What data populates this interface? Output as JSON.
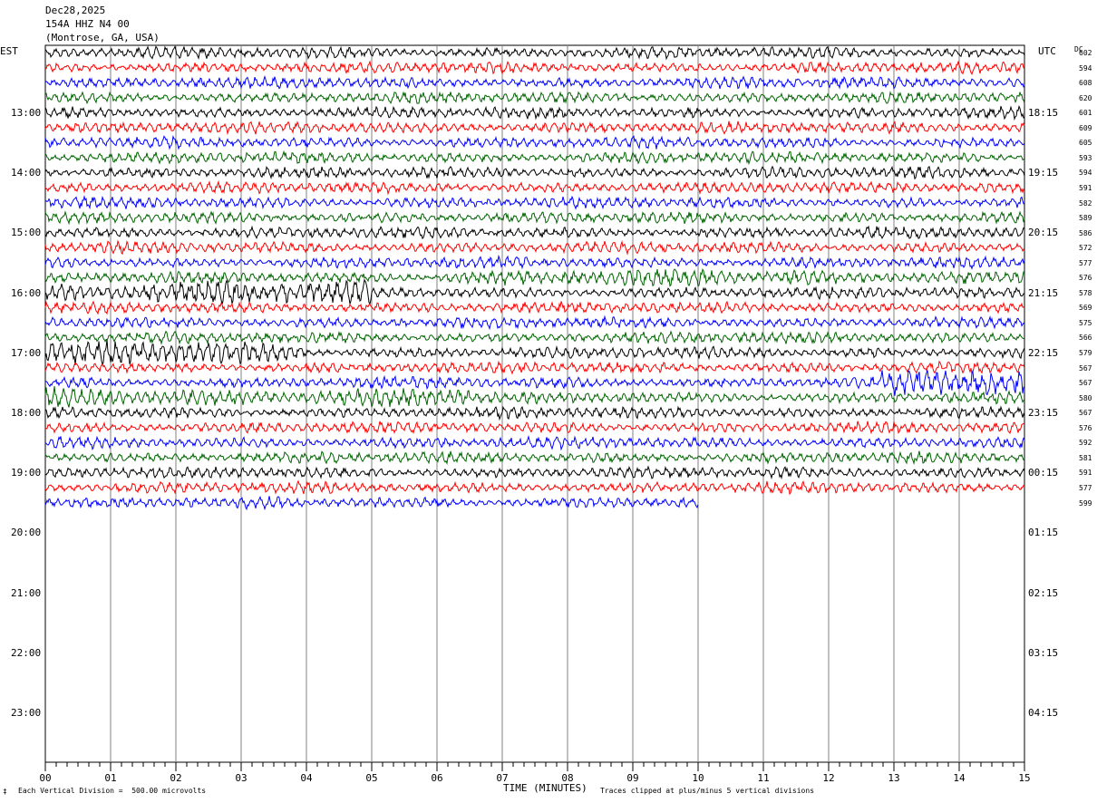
{
  "header": {
    "date": "Dec28,2025",
    "station": "154A HHZ N4 00",
    "location": "(Montrose, GA, USA)"
  },
  "left_zone": "EST",
  "right_zone": "UTC",
  "dc_label": "DC",
  "footer": {
    "division": "Each Vertical Division =  500.00 microvolts",
    "clip": "Traces clipped at plus/minus 5 vertical divisions",
    "corner_mark": "‡"
  },
  "colors": {
    "black": "#000000",
    "red": "#ff0000",
    "blue": "#0000ff",
    "green": "#006400",
    "grid": "#000000"
  },
  "chart_data": {
    "type": "line",
    "title": "",
    "xlabel": "TIME (MINUTES)",
    "xlim": [
      0,
      15
    ],
    "x_ticks": [
      "00",
      "01",
      "02",
      "03",
      "04",
      "05",
      "06",
      "07",
      "08",
      "09",
      "10",
      "11",
      "12",
      "13",
      "14",
      "15"
    ],
    "left_hour_labels": [
      "13:00",
      "14:00",
      "15:00",
      "16:00",
      "17:00",
      "18:00",
      "19:00",
      "20:00",
      "21:00",
      "22:00",
      "23:00"
    ],
    "right_hour_labels": [
      "18:15",
      "19:15",
      "20:15",
      "21:15",
      "22:15",
      "23:15",
      "00:15",
      "01:15",
      "02:15",
      "03:15",
      "04:15"
    ],
    "trace_color_cycle": [
      "black",
      "red",
      "blue",
      "green"
    ],
    "trace_dc_offsets": [
      602,
      594,
      608,
      620,
      601,
      609,
      605,
      593,
      594,
      591,
      582,
      589,
      586,
      572,
      577,
      576,
      578,
      569,
      575,
      566,
      579,
      567,
      567,
      580,
      567,
      576,
      592,
      581,
      591,
      577,
      599
    ],
    "last_trace_end_minute": 10,
    "high_activity": [
      {
        "trace": 15,
        "from_min": 6.0,
        "to_min": 15.0,
        "level": 1.6
      },
      {
        "trace": 16,
        "from_min": 0.0,
        "to_min": 5.0,
        "level": 2.6
      },
      {
        "trace": 20,
        "from_min": 0.0,
        "to_min": 4.0,
        "level": 2.4
      },
      {
        "trace": 22,
        "from_min": 12.8,
        "to_min": 15.0,
        "level": 3.0
      },
      {
        "trace": 23,
        "from_min": 0.0,
        "to_min": 6.5,
        "level": 2.0
      }
    ]
  }
}
